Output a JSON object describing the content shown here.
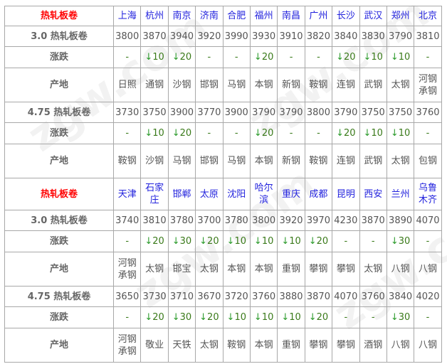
{
  "sections": [
    {
      "title": "热轧板卷",
      "cities": [
        "上海",
        "杭州",
        "南京",
        "济南",
        "合肥",
        "福州",
        "南昌",
        "广州",
        "长沙",
        "武汉",
        "郑州",
        "北京"
      ],
      "rows": [
        {
          "label": "3.0 热轧板卷",
          "type": "price",
          "values": [
            "3800",
            "3870",
            "3940",
            "3920",
            "3990",
            "3930",
            "3910",
            "3820",
            "3840",
            "3830",
            "3790",
            "3810"
          ]
        },
        {
          "label": "涨跌",
          "type": "chg",
          "values": [
            "-",
            "10",
            "20",
            "-",
            "-",
            "20",
            "-",
            "-",
            "20",
            "10",
            "10",
            "-"
          ]
        },
        {
          "label": "产地",
          "type": "origin",
          "values": [
            "日照",
            "通钢",
            "沙钢",
            "邯钢",
            "马钢",
            "本钢",
            "新钢",
            "鞍钢",
            "连钢",
            "武钢",
            "太钢",
            "河钢承钢"
          ]
        },
        {
          "label": "4.75 热轧板卷",
          "type": "price",
          "values": [
            "3730",
            "3750",
            "3900",
            "3770",
            "3900",
            "3790",
            "3790",
            "3800",
            "3790",
            "3750",
            "3750",
            "3760"
          ]
        },
        {
          "label": "涨跌",
          "type": "chg",
          "values": [
            "-",
            "10",
            "20",
            "-",
            "-",
            "20",
            "-",
            "-",
            "20",
            "10",
            "10",
            "-"
          ]
        },
        {
          "label": "产地",
          "type": "origin",
          "values": [
            "鞍钢",
            "沙钢",
            "马钢",
            "邯钢",
            "马钢",
            "本钢",
            "新钢",
            "鞍钢",
            "连钢",
            "武钢",
            "太钢",
            "包钢"
          ]
        }
      ]
    },
    {
      "title": "热轧板卷",
      "cities": [
        "天津",
        "石家庄",
        "邯郸",
        "太原",
        "沈阳",
        "哈尔滨",
        "重庆",
        "成都",
        "昆明",
        "西安",
        "兰州",
        "乌鲁木齐"
      ],
      "rows": [
        {
          "label": "3.0 热轧板卷",
          "type": "price",
          "values": [
            "3740",
            "3810",
            "3780",
            "3700",
            "3780",
            "3800",
            "3920",
            "3970",
            "4230",
            "3870",
            "3890",
            "4070"
          ]
        },
        {
          "label": "涨跌",
          "type": "chg",
          "values": [
            "-",
            "20",
            "30",
            "20",
            "10",
            "10",
            "10",
            "20",
            "-",
            "-",
            "30",
            "-"
          ]
        },
        {
          "label": "产地",
          "type": "origin",
          "values": [
            "河钢承钢",
            "太钢",
            "邯宝",
            "太钢",
            "本钢",
            "本钢",
            "重钢",
            "攀钢",
            "攀钢",
            "太钢",
            "八钢",
            "八钢"
          ]
        },
        {
          "label": "4.75 热轧板卷",
          "type": "price",
          "values": [
            "3650",
            "3730",
            "3710",
            "3670",
            "3720",
            "3760",
            "3880",
            "3870",
            "4070",
            "3760",
            "3840",
            "4020"
          ]
        },
        {
          "label": "涨跌",
          "type": "chg",
          "values": [
            "-",
            "20",
            "30",
            "20",
            "10",
            "10",
            "10",
            "20",
            "-",
            "-",
            "30",
            "-"
          ]
        },
        {
          "label": "产地",
          "type": "origin",
          "values": [
            "河钢承钢",
            "敬业",
            "天铁",
            "太钢",
            "鞍钢",
            "本钢",
            "重钢",
            "攀钢",
            "攀钢",
            "酒钢",
            "八钢",
            "八钢"
          ]
        }
      ]
    }
  ],
  "change_icon": "down-arrow-icon",
  "colors": {
    "title": "#ff0000",
    "city": "#2222dd",
    "change": "#3a7a1a",
    "arrow": "#2a9a2a"
  }
}
